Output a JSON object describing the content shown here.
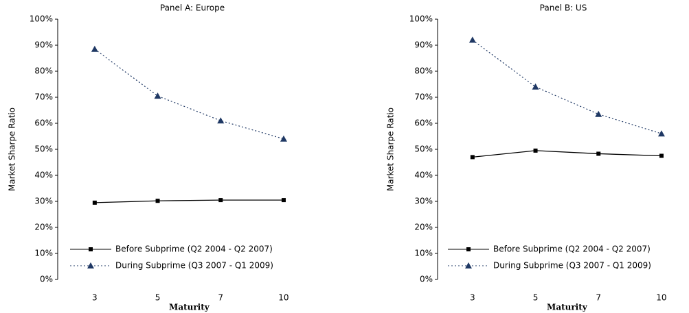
{
  "chart_data": [
    {
      "type": "line",
      "title": "Panel A: Europe",
      "x_label": "Maturity",
      "y_label": "Market Sharpe Ratio",
      "categories": [
        "3",
        "5",
        "7",
        "10"
      ],
      "series": [
        {
          "name": "Before Subprime (Q2 2004 - Q2 2007)",
          "color": "#000000",
          "marker": "square",
          "dash": "solid",
          "values": [
            29.5,
            30.2,
            30.5,
            30.5
          ]
        },
        {
          "name": "During Subprime (Q3 2007 - Q1 2009)",
          "color": "#1f3864",
          "marker": "triangle",
          "dash": "dotted",
          "values": [
            88.5,
            70.5,
            61,
            54
          ]
        }
      ],
      "ylim": [
        0,
        100
      ],
      "yticks": [
        {
          "value": 0,
          "label": "0%"
        },
        {
          "value": 10,
          "label": "10%"
        },
        {
          "value": 20,
          "label": "20%"
        },
        {
          "value": 30,
          "label": "30%"
        },
        {
          "value": 40,
          "label": "40%"
        },
        {
          "value": 50,
          "label": "50%"
        },
        {
          "value": 60,
          "label": "60%"
        },
        {
          "value": 70,
          "label": "70%"
        },
        {
          "value": 80,
          "label": "80%"
        },
        {
          "value": 90,
          "label": "90%"
        },
        {
          "value": 100,
          "label": "100%"
        }
      ],
      "legend": "lower center"
    },
    {
      "type": "line",
      "title": "Panel B: US",
      "x_label": "Maturity",
      "y_label": "Market Sharpe Ratio",
      "categories": [
        "3",
        "5",
        "7",
        "10"
      ],
      "series": [
        {
          "name": "Before Subprime (Q2 2004 - Q2 2007)",
          "color": "#000000",
          "marker": "square",
          "dash": "solid",
          "values": [
            47,
            49.5,
            48.3,
            47.5
          ]
        },
        {
          "name": "During Subprime (Q3 2007 - Q1 2009)",
          "color": "#1f3864",
          "marker": "triangle",
          "dash": "dotted",
          "values": [
            92,
            74,
            63.5,
            56
          ]
        }
      ],
      "ylim": [
        0,
        100
      ],
      "yticks": [
        {
          "value": 0,
          "label": "0%"
        },
        {
          "value": 10,
          "label": "10%"
        },
        {
          "value": 20,
          "label": "20%"
        },
        {
          "value": 30,
          "label": "30%"
        },
        {
          "value": 40,
          "label": "40%"
        },
        {
          "value": 50,
          "label": "50%"
        },
        {
          "value": 60,
          "label": "60%"
        },
        {
          "value": 70,
          "label": "70%"
        },
        {
          "value": 80,
          "label": "80%"
        },
        {
          "value": 90,
          "label": "90%"
        },
        {
          "value": 100,
          "label": "100%"
        }
      ],
      "legend": "lower center"
    }
  ]
}
